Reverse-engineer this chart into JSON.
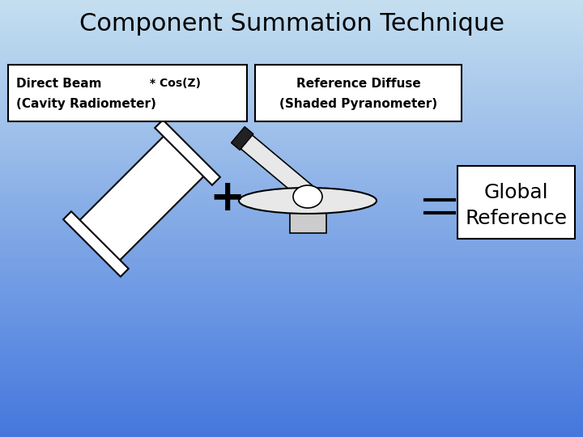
{
  "title": "Component Summation Technique",
  "title_fontsize": 22,
  "bg_top_color": "#c5dff0",
  "bg_bottom_color": "#4477dd",
  "label1_line1": "Direct Beam",
  "label1_line2": "(Cavity Radiometer)",
  "label1_extra": "* Cos(Z)",
  "label2_line1": "Reference Diffuse",
  "label2_line2": "(Shaded Pyranometer)",
  "label3_line1": "Global",
  "label3_line2": "Reference",
  "plus_sign": "+",
  "equals_sign": "=",
  "box_facecolor": "#ffffff",
  "box_edgecolor": "#000000",
  "instrument_color": "#ffffff",
  "instrument_edge": "#000000",
  "pyranometer_color": "#cccccc",
  "pyranometer_light": "#e8e8e8",
  "dark_cap_color": "#222222"
}
